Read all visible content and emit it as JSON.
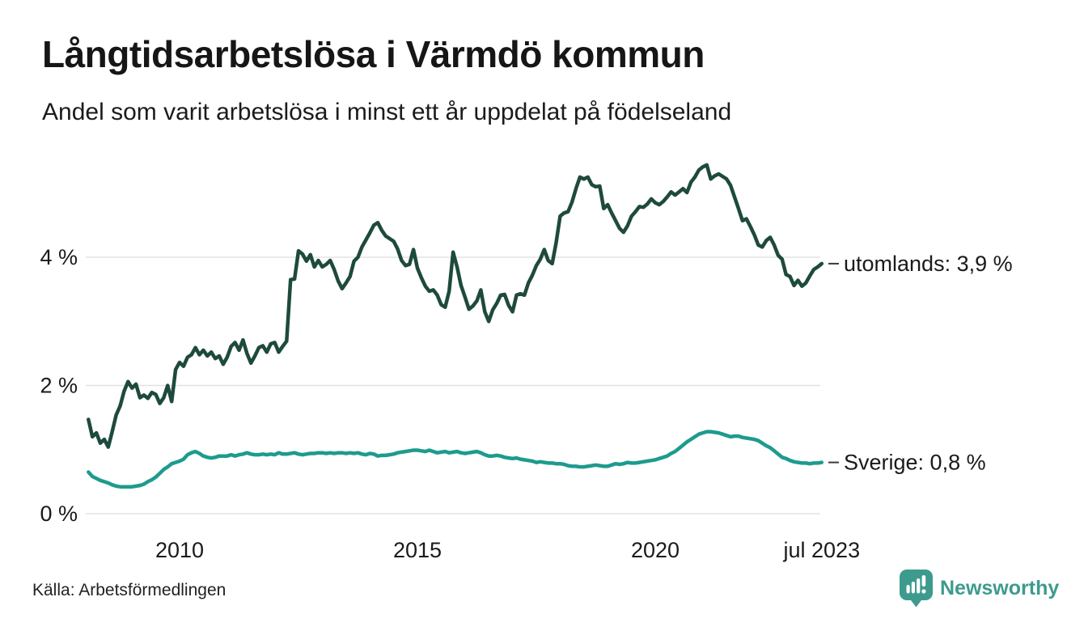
{
  "header": {
    "title": "Långtidsarbetslösa i Värmdö kommun",
    "subtitle": "Andel som varit arbetslösa i minst ett år uppdelat på födelseland"
  },
  "footer": {
    "source": "Källa: Arbetsförmedlingen",
    "brand_name": "Newsworthy",
    "brand_color": "#3d9b8d"
  },
  "chart_data": {
    "type": "line",
    "title": "Långtidsarbetslösa i Värmdö kommun",
    "subtitle": "Andel som varit arbetslösa i minst ett år uppdelat på födelseland",
    "x_unit": "month",
    "x_start": "2008-02",
    "x_end": "2023-07",
    "grid": "horizontal",
    "ylim": [
      0,
      5.6
    ],
    "y_ticks": [
      {
        "label": "0 %",
        "v": 0
      },
      {
        "label": "2 %",
        "v": 2
      },
      {
        "label": "4 %",
        "v": 4
      }
    ],
    "x_ticks": [
      {
        "label": "2010",
        "t": 2010
      },
      {
        "label": "2015",
        "t": 2015
      },
      {
        "label": "2020",
        "t": 2020
      },
      {
        "label": "jul 2023",
        "t": 2023.5
      }
    ],
    "series": [
      {
        "name": "utomlands",
        "end_label": "utomlands: 3,9 %",
        "last_value": "3,9 %",
        "color": "#1e4a3d",
        "values": [
          1.47,
          1.2,
          1.26,
          1.1,
          1.16,
          1.04,
          1.28,
          1.54,
          1.68,
          1.91,
          2.06,
          1.96,
          2.02,
          1.81,
          1.85,
          1.8,
          1.89,
          1.86,
          1.72,
          1.81,
          2.0,
          1.75,
          2.25,
          2.36,
          2.3,
          2.44,
          2.48,
          2.59,
          2.48,
          2.55,
          2.46,
          2.52,
          2.42,
          2.46,
          2.33,
          2.44,
          2.61,
          2.67,
          2.55,
          2.71,
          2.5,
          2.35,
          2.46,
          2.59,
          2.62,
          2.52,
          2.65,
          2.67,
          2.52,
          2.61,
          2.69,
          3.65,
          3.66,
          4.1,
          4.05,
          3.94,
          4.04,
          3.85,
          3.95,
          3.85,
          3.89,
          3.95,
          3.81,
          3.63,
          3.51,
          3.6,
          3.7,
          3.94,
          4.0,
          4.16,
          4.27,
          4.38,
          4.5,
          4.54,
          4.42,
          4.33,
          4.29,
          4.25,
          4.13,
          3.95,
          3.87,
          3.89,
          4.12,
          3.83,
          3.68,
          3.55,
          3.47,
          3.49,
          3.41,
          3.26,
          3.22,
          3.47,
          4.08,
          3.85,
          3.56,
          3.38,
          3.19,
          3.24,
          3.32,
          3.49,
          3.15,
          3.0,
          3.18,
          3.28,
          3.41,
          3.42,
          3.25,
          3.15,
          3.41,
          3.43,
          3.41,
          3.6,
          3.72,
          3.87,
          3.97,
          4.12,
          3.95,
          3.9,
          4.23,
          4.64,
          4.69,
          4.71,
          4.86,
          5.07,
          5.25,
          5.22,
          5.25,
          5.13,
          5.1,
          5.11,
          4.76,
          4.82,
          4.69,
          4.57,
          4.45,
          4.39,
          4.49,
          4.64,
          4.71,
          4.79,
          4.78,
          4.83,
          4.91,
          4.85,
          4.82,
          4.87,
          4.94,
          5.02,
          4.97,
          5.02,
          5.07,
          5.01,
          5.17,
          5.25,
          5.36,
          5.41,
          5.44,
          5.22,
          5.27,
          5.3,
          5.26,
          5.22,
          5.12,
          4.94,
          4.76,
          4.57,
          4.6,
          4.48,
          4.35,
          4.19,
          4.16,
          4.26,
          4.31,
          4.19,
          4.03,
          3.97,
          3.73,
          3.7,
          3.56,
          3.64,
          3.55,
          3.6,
          3.71,
          3.81,
          3.85,
          3.9
        ]
      },
      {
        "name": "Sverige",
        "end_label": "Sverige: 0,8 %",
        "last_value": "0,8 %",
        "color": "#1d9b8e",
        "values": [
          0.65,
          0.58,
          0.55,
          0.52,
          0.5,
          0.48,
          0.45,
          0.43,
          0.42,
          0.42,
          0.42,
          0.42,
          0.43,
          0.44,
          0.46,
          0.5,
          0.53,
          0.57,
          0.63,
          0.69,
          0.73,
          0.78,
          0.8,
          0.82,
          0.85,
          0.92,
          0.95,
          0.97,
          0.94,
          0.9,
          0.88,
          0.87,
          0.88,
          0.9,
          0.9,
          0.9,
          0.92,
          0.9,
          0.92,
          0.93,
          0.95,
          0.93,
          0.92,
          0.92,
          0.93,
          0.92,
          0.93,
          0.92,
          0.95,
          0.93,
          0.93,
          0.94,
          0.95,
          0.93,
          0.92,
          0.93,
          0.94,
          0.94,
          0.95,
          0.95,
          0.94,
          0.95,
          0.94,
          0.95,
          0.95,
          0.94,
          0.95,
          0.94,
          0.95,
          0.93,
          0.92,
          0.94,
          0.93,
          0.9,
          0.91,
          0.91,
          0.92,
          0.93,
          0.95,
          0.96,
          0.97,
          0.98,
          0.99,
          0.99,
          0.98,
          0.97,
          0.99,
          0.97,
          0.95,
          0.96,
          0.97,
          0.95,
          0.96,
          0.97,
          0.95,
          0.94,
          0.95,
          0.96,
          0.97,
          0.95,
          0.92,
          0.9,
          0.9,
          0.91,
          0.9,
          0.88,
          0.87,
          0.86,
          0.87,
          0.85,
          0.84,
          0.83,
          0.82,
          0.8,
          0.81,
          0.8,
          0.79,
          0.79,
          0.78,
          0.78,
          0.77,
          0.75,
          0.74,
          0.74,
          0.73,
          0.73,
          0.74,
          0.75,
          0.76,
          0.75,
          0.74,
          0.74,
          0.76,
          0.78,
          0.77,
          0.78,
          0.8,
          0.79,
          0.79,
          0.8,
          0.81,
          0.82,
          0.83,
          0.84,
          0.86,
          0.88,
          0.9,
          0.94,
          0.97,
          1.02,
          1.07,
          1.12,
          1.16,
          1.2,
          1.24,
          1.26,
          1.28,
          1.28,
          1.27,
          1.26,
          1.24,
          1.22,
          1.2,
          1.21,
          1.21,
          1.19,
          1.18,
          1.17,
          1.16,
          1.14,
          1.1,
          1.06,
          1.03,
          0.98,
          0.93,
          0.88,
          0.86,
          0.83,
          0.81,
          0.8,
          0.79,
          0.79,
          0.78,
          0.79,
          0.79,
          0.8
        ]
      }
    ]
  }
}
